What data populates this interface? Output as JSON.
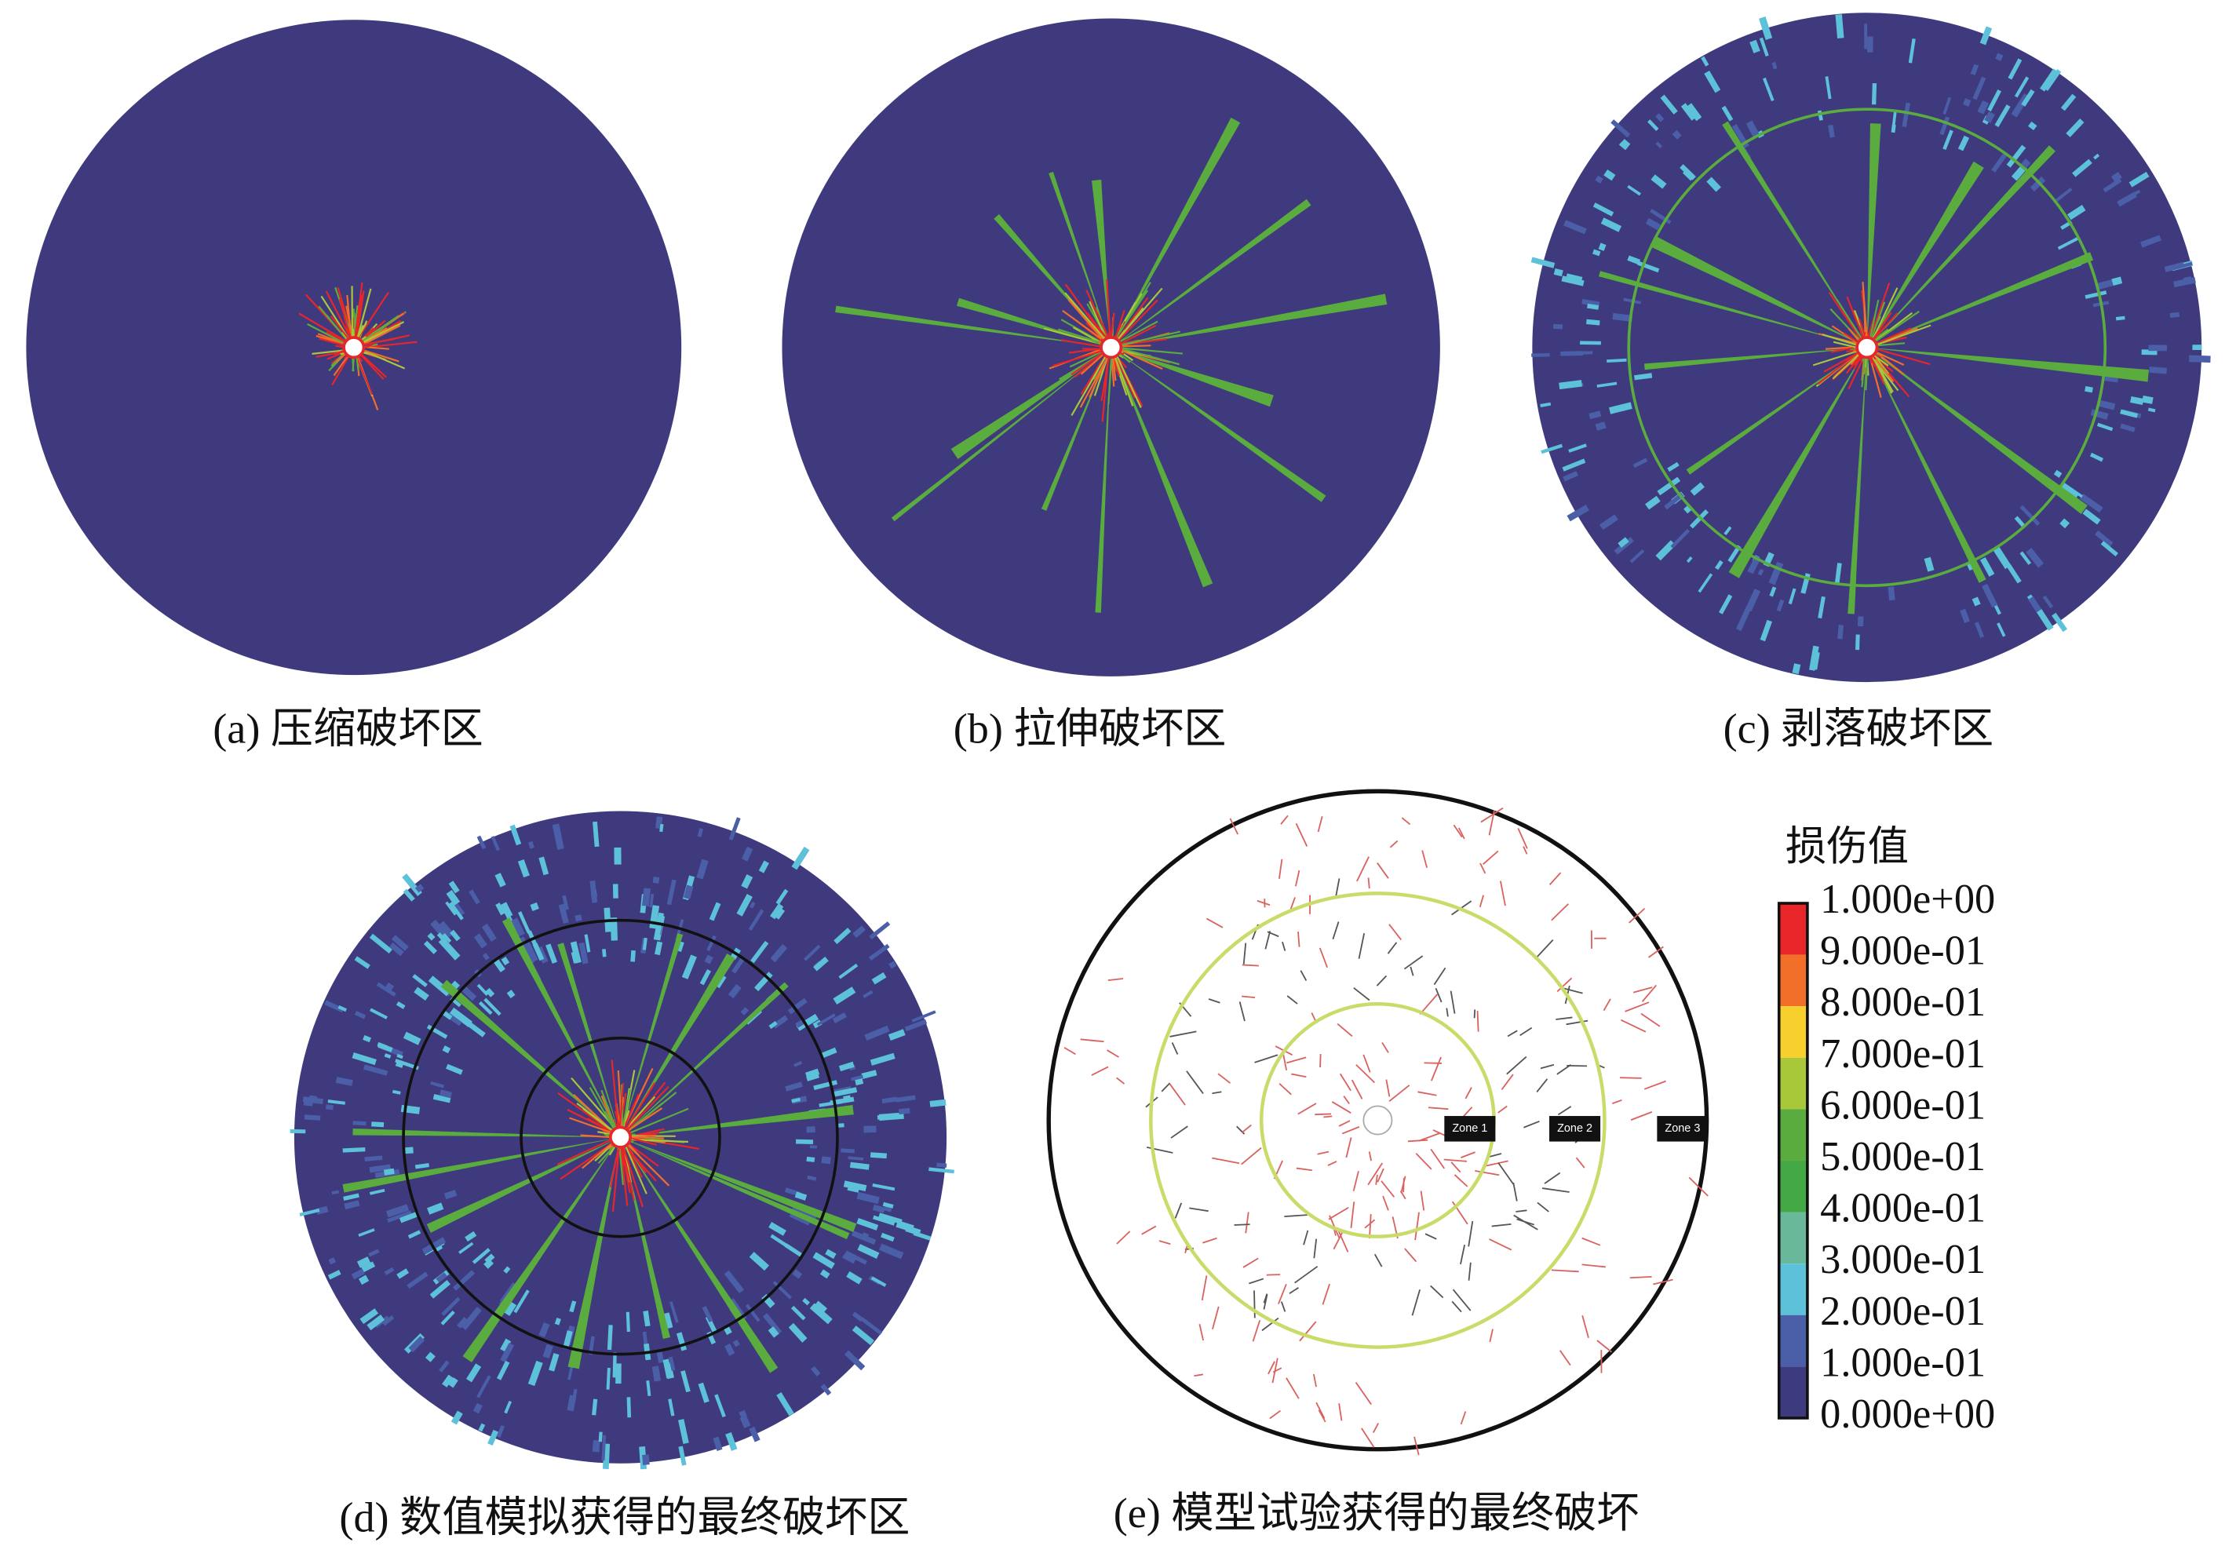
{
  "panels": [
    {
      "caption": "(a) 压缩破坏区"
    },
    {
      "caption": "(b) 拉伸破坏区"
    },
    {
      "caption": "(c) 剥落破坏区"
    },
    {
      "caption": "(d) 数值模拟获得的最终破坏区"
    },
    {
      "caption": "(e) 模型试验获得的最终破坏"
    }
  ],
  "legend": {
    "title": "损伤值",
    "labels": [
      "1.000e+00",
      "9.000e-01",
      "8.000e-01",
      "7.000e-01",
      "6.000e-01",
      "5.000e-01",
      "4.000e-01",
      "3.000e-01",
      "2.000e-01",
      "1.000e-01",
      "0.000e+00"
    ]
  },
  "zones": [
    "Zone 1",
    "Zone 2",
    "Zone 3"
  ]
}
